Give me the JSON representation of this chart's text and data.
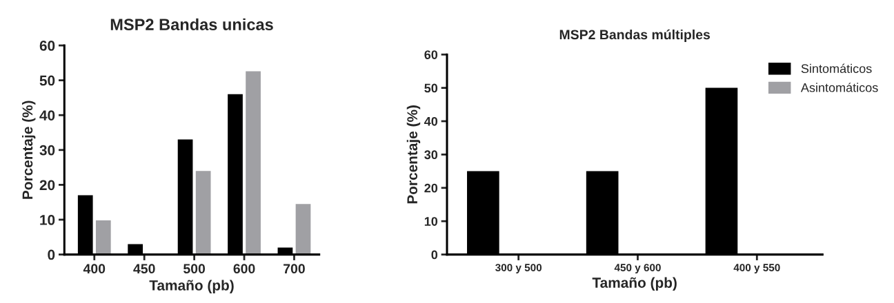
{
  "chart_data": [
    {
      "type": "bar",
      "title": "MSP2 Bandas unicas",
      "xlabel": "Tamaño (pb)",
      "ylabel": "Porcentaje (%)",
      "categories": [
        "400",
        "450",
        "500",
        "600",
        "700"
      ],
      "series": [
        {
          "color": "#000000",
          "values": [
            17,
            3,
            33,
            46,
            2
          ]
        },
        {
          "color": "#a0a0a4",
          "values": [
            9.8,
            0,
            24,
            52.6,
            14.5
          ]
        }
      ],
      "ylim": [
        0,
        60
      ],
      "yticks": [
        0,
        10,
        20,
        30,
        40,
        50,
        60
      ],
      "grid": false,
      "legend": false
    },
    {
      "type": "bar",
      "title": "MSP2 Bandas múltiples",
      "xlabel": "Tamaño (pb)",
      "ylabel": "Porcentaje (%)",
      "categories": [
        "300 y 500",
        "450 y 600",
        "400 y 550"
      ],
      "series": [
        {
          "name": "Sintomáticos",
          "color": "#000000",
          "values": [
            25,
            25,
            50
          ]
        },
        {
          "name": "Asintomáticos",
          "color": "#a0a0a4",
          "values": [
            0,
            0,
            0
          ]
        }
      ],
      "ylim": [
        0,
        60
      ],
      "yticks": [
        0,
        10,
        20,
        30,
        40,
        50,
        60
      ],
      "grid": false,
      "legend": "top right"
    }
  ]
}
